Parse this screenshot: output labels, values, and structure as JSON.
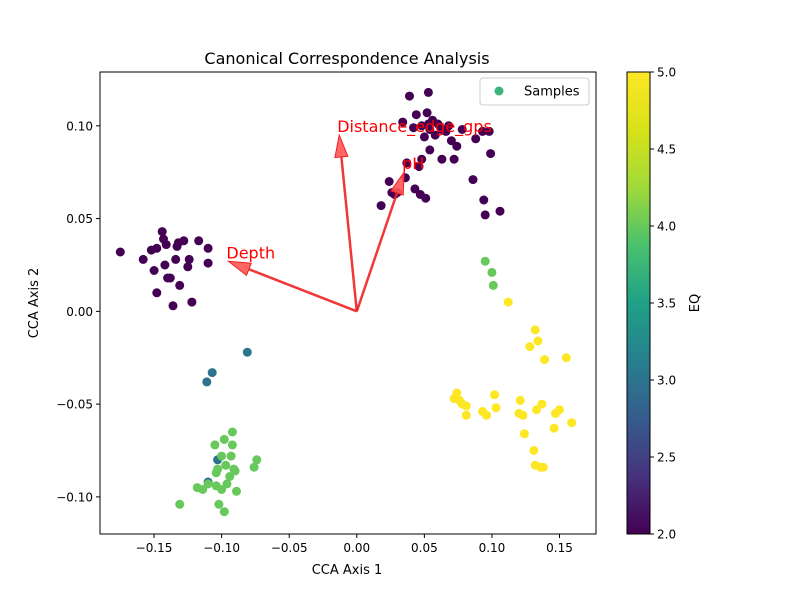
{
  "chart_data": {
    "type": "scatter",
    "title": "Canonical Correspondence Analysis",
    "xlabel": "CCA Axis 1",
    "ylabel": "CCA Axis 2",
    "xlim": [
      -0.19,
      0.177
    ],
    "ylim": [
      -0.12,
      0.129
    ],
    "xticks": [
      -0.15,
      -0.1,
      -0.05,
      0.0,
      0.05,
      0.1,
      0.15
    ],
    "xtick_labels": [
      "−0.15",
      "−0.10",
      "−0.05",
      "0.00",
      "0.05",
      "0.10",
      "0.15"
    ],
    "yticks": [
      -0.1,
      -0.05,
      0.0,
      0.05,
      0.1
    ],
    "ytick_labels": [
      "−0.10",
      "−0.05",
      "0.00",
      "0.05",
      "0.10"
    ],
    "grid": false,
    "legend": {
      "position": "top-right",
      "entries": [
        {
          "label": "Samples",
          "color": "#3bb57c"
        }
      ]
    },
    "colorbar": {
      "label": "EQ",
      "min": 2.0,
      "max": 5.0,
      "ticks": [
        2.0,
        2.5,
        3.0,
        3.5,
        4.0,
        4.5,
        5.0
      ],
      "tick_labels": [
        "2.0",
        "2.5",
        "3.0",
        "3.5",
        "4.0",
        "4.5",
        "5.0"
      ],
      "colormap": "viridis"
    },
    "arrows": [
      {
        "label": "Distance_edge_gps",
        "x": -0.013,
        "y": 0.095
      },
      {
        "label": "pH",
        "x": 0.035,
        "y": 0.075
      },
      {
        "label": "Depth",
        "x": -0.095,
        "y": 0.027
      }
    ],
    "series": [
      {
        "eq": 2.0,
        "points": [
          [
            -0.175,
            0.032
          ],
          [
            -0.158,
            0.028
          ],
          [
            -0.152,
            0.033
          ],
          [
            -0.15,
            0.022
          ],
          [
            -0.148,
            0.01
          ],
          [
            -0.148,
            0.034
          ],
          [
            -0.144,
            0.043
          ],
          [
            -0.143,
            0.039
          ],
          [
            -0.142,
            0.025
          ],
          [
            -0.141,
            0.036
          ],
          [
            -0.14,
            0.018
          ],
          [
            -0.138,
            0.018
          ],
          [
            -0.136,
            0.003
          ],
          [
            -0.134,
            0.028
          ],
          [
            -0.133,
            0.035
          ],
          [
            -0.132,
            0.037
          ],
          [
            -0.131,
            0.014
          ],
          [
            -0.128,
            0.038
          ],
          [
            -0.125,
            0.024
          ],
          [
            -0.124,
            0.028
          ],
          [
            -0.122,
            0.005
          ],
          [
            -0.117,
            0.038
          ],
          [
            -0.11,
            0.034
          ],
          [
            -0.11,
            0.026
          ],
          [
            0.018,
            0.057
          ],
          [
            0.024,
            0.07
          ],
          [
            0.026,
            0.064
          ],
          [
            0.028,
            0.063
          ],
          [
            0.03,
            0.064
          ],
          [
            0.034,
            0.102
          ],
          [
            0.036,
            0.072
          ],
          [
            0.037,
            0.08
          ],
          [
            0.039,
            0.116
          ],
          [
            0.042,
            0.099
          ],
          [
            0.043,
            0.066
          ],
          [
            0.044,
            0.106
          ],
          [
            0.046,
            0.078
          ],
          [
            0.047,
            0.063
          ],
          [
            0.048,
            0.1
          ],
          [
            0.048,
            0.082
          ],
          [
            0.05,
            0.094
          ],
          [
            0.051,
            0.061
          ],
          [
            0.052,
            0.107
          ],
          [
            0.053,
            0.101
          ],
          [
            0.053,
            0.118
          ],
          [
            0.054,
            0.087
          ],
          [
            0.054,
            0.098
          ],
          [
            0.056,
            0.103
          ],
          [
            0.058,
            0.095
          ],
          [
            0.06,
            0.101
          ],
          [
            0.063,
            0.098
          ],
          [
            0.063,
            0.082
          ],
          [
            0.066,
            0.097
          ],
          [
            0.068,
            0.1
          ],
          [
            0.07,
            0.092
          ],
          [
            0.072,
            0.082
          ],
          [
            0.074,
            0.089
          ],
          [
            0.078,
            0.098
          ],
          [
            0.086,
            0.071
          ],
          [
            0.088,
            0.093
          ],
          [
            0.093,
            0.097
          ],
          [
            0.094,
            0.06
          ],
          [
            0.095,
            0.052
          ],
          [
            0.098,
            0.097
          ],
          [
            0.099,
            0.085
          ],
          [
            0.106,
            0.054
          ]
        ]
      },
      {
        "eq": 3.0,
        "points": [
          [
            -0.081,
            -0.022
          ],
          [
            -0.107,
            -0.033
          ],
          [
            -0.111,
            -0.038
          ],
          [
            -0.11,
            -0.092
          ],
          [
            -0.103,
            -0.08
          ]
        ]
      },
      {
        "eq": 4.0,
        "points": [
          [
            -0.131,
            -0.104
          ],
          [
            -0.118,
            -0.095
          ],
          [
            -0.114,
            -0.096
          ],
          [
            -0.11,
            -0.093
          ],
          [
            -0.105,
            -0.072
          ],
          [
            -0.104,
            -0.087
          ],
          [
            -0.104,
            -0.094
          ],
          [
            -0.103,
            -0.085
          ],
          [
            -0.102,
            -0.104
          ],
          [
            -0.1,
            -0.078
          ],
          [
            -0.1,
            -0.096
          ],
          [
            -0.098,
            -0.069
          ],
          [
            -0.098,
            -0.108
          ],
          [
            -0.097,
            -0.083
          ],
          [
            -0.096,
            -0.093
          ],
          [
            -0.094,
            -0.089
          ],
          [
            -0.093,
            -0.078
          ],
          [
            -0.092,
            -0.065
          ],
          [
            -0.092,
            -0.072
          ],
          [
            -0.091,
            -0.085
          ],
          [
            -0.09,
            -0.086
          ],
          [
            -0.089,
            -0.097
          ],
          [
            -0.076,
            -0.084
          ],
          [
            -0.074,
            -0.08
          ],
          [
            0.095,
            0.027
          ],
          [
            0.1,
            0.021
          ],
          [
            0.101,
            0.014
          ]
        ]
      },
      {
        "eq": 5.0,
        "points": [
          [
            0.072,
            -0.047
          ],
          [
            0.074,
            -0.044
          ],
          [
            0.076,
            -0.048
          ],
          [
            0.078,
            -0.05
          ],
          [
            0.081,
            -0.051
          ],
          [
            0.081,
            -0.056
          ],
          [
            0.093,
            -0.054
          ],
          [
            0.096,
            -0.056
          ],
          [
            0.102,
            -0.045
          ],
          [
            0.103,
            -0.052
          ],
          [
            0.112,
            0.005
          ],
          [
            0.12,
            -0.055
          ],
          [
            0.121,
            -0.048
          ],
          [
            0.123,
            -0.056
          ],
          [
            0.124,
            -0.066
          ],
          [
            0.128,
            -0.019
          ],
          [
            0.131,
            -0.075
          ],
          [
            0.132,
            -0.01
          ],
          [
            0.132,
            -0.083
          ],
          [
            0.133,
            -0.053
          ],
          [
            0.134,
            -0.016
          ],
          [
            0.136,
            -0.084
          ],
          [
            0.137,
            -0.05
          ],
          [
            0.138,
            -0.084
          ],
          [
            0.139,
            -0.026
          ],
          [
            0.146,
            -0.063
          ],
          [
            0.147,
            -0.055
          ],
          [
            0.15,
            -0.053
          ],
          [
            0.155,
            -0.025
          ],
          [
            0.159,
            -0.06
          ]
        ]
      }
    ]
  }
}
